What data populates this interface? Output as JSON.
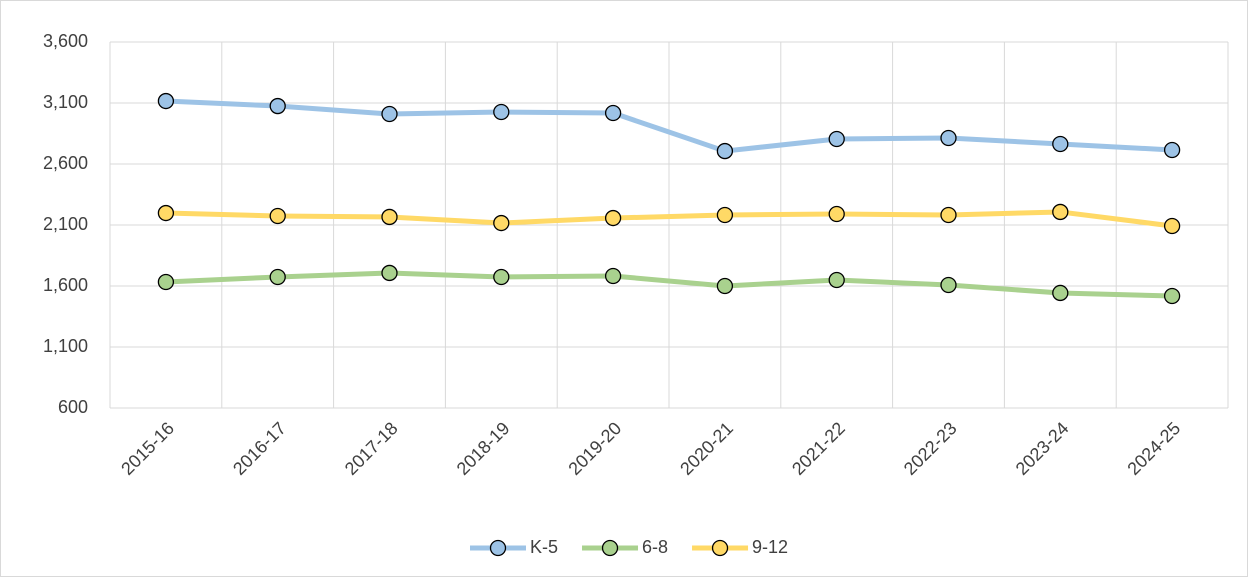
{
  "chart_data": {
    "type": "line",
    "categories": [
      "2015-16",
      "2016-17",
      "2017-18",
      "2018-19",
      "2019-20",
      "2020-21",
      "2021-22",
      "2022-23",
      "2023-24",
      "2024-25"
    ],
    "series": [
      {
        "name": "K-5",
        "color": "#9dc3e6",
        "values": [
          3116,
          3075,
          3010,
          3026,
          3018,
          2706,
          2805,
          2813,
          2764,
          2715
        ]
      },
      {
        "name": "6-8",
        "color": "#a9d18e",
        "values": [
          1633,
          1674,
          1707,
          1674,
          1682,
          1600,
          1649,
          1608,
          1543,
          1518
        ]
      },
      {
        "name": "9-12",
        "color": "#ffd966",
        "values": [
          2198,
          2174,
          2166,
          2116,
          2157,
          2182,
          2190,
          2182,
          2207,
          2092
        ]
      }
    ],
    "ylim": [
      600,
      3600
    ],
    "yticks": [
      {
        "value": 600,
        "label": "600"
      },
      {
        "value": 1100,
        "label": "1,100"
      },
      {
        "value": 1600,
        "label": "1,600"
      },
      {
        "value": 2100,
        "label": "2,100"
      },
      {
        "value": 2600,
        "label": "2,600"
      },
      {
        "value": 3100,
        "label": "3,100"
      },
      {
        "value": 3600,
        "label": "3,600"
      }
    ],
    "grid": true,
    "legend": "bottom"
  }
}
